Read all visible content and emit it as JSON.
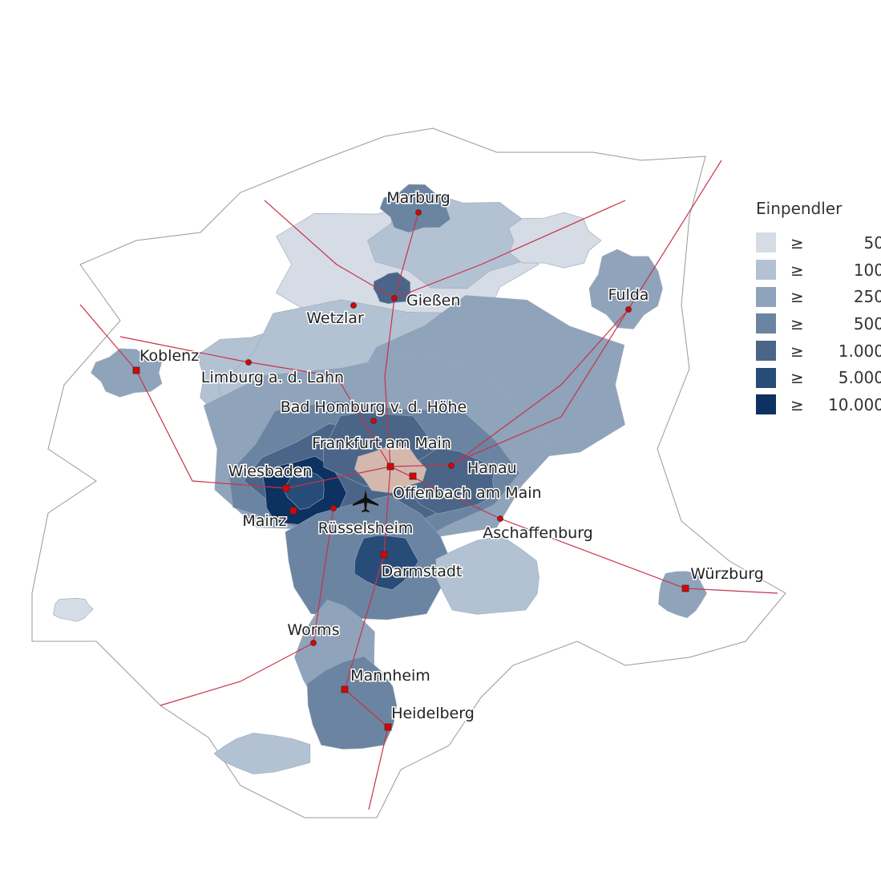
{
  "legend": {
    "title": "Einpendler",
    "symbol": "≥",
    "classes": [
      {
        "label": "50",
        "color": "#d5dce5"
      },
      {
        "label": "100",
        "color": "#b3c2d3"
      },
      {
        "label": "250",
        "color": "#8fa3ba"
      },
      {
        "label": "500",
        "color": "#6b84a1"
      },
      {
        "label": "1.000",
        "color": "#4a6588"
      },
      {
        "label": "5.000",
        "color": "#284c78"
      },
      {
        "label": "10.000",
        "color": "#0d3161"
      }
    ]
  },
  "destination_color": "#d4b8ae",
  "rail_color": "#c8324a",
  "city_marker_color": "#e00000",
  "airport_icon": "airplane-icon",
  "cities": [
    {
      "name": "Marburg",
      "marker": "circle"
    },
    {
      "name": "Gießen",
      "marker": "circle"
    },
    {
      "name": "Wetzlar",
      "marker": "circle"
    },
    {
      "name": "Fulda",
      "marker": "circle"
    },
    {
      "name": "Koblenz",
      "marker": "square"
    },
    {
      "name": "Limburg a. d. Lahn",
      "marker": "circle"
    },
    {
      "name": "Bad Homburg v. d. Höhe",
      "marker": "circle"
    },
    {
      "name": "Frankfurt am Main",
      "marker": "square"
    },
    {
      "name": "Hanau",
      "marker": "circle"
    },
    {
      "name": "Wiesbaden",
      "marker": "square"
    },
    {
      "name": "Offenbach am Main",
      "marker": "square"
    },
    {
      "name": "Mainz",
      "marker": "square"
    },
    {
      "name": "Rüsselsheim",
      "marker": "circle"
    },
    {
      "name": "Aschaffenburg",
      "marker": "circle"
    },
    {
      "name": "Darmstadt",
      "marker": "square"
    },
    {
      "name": "Würzburg",
      "marker": "square"
    },
    {
      "name": "Worms",
      "marker": "circle"
    },
    {
      "name": "Mannheim",
      "marker": "square"
    },
    {
      "name": "Heidelberg",
      "marker": "square"
    }
  ]
}
